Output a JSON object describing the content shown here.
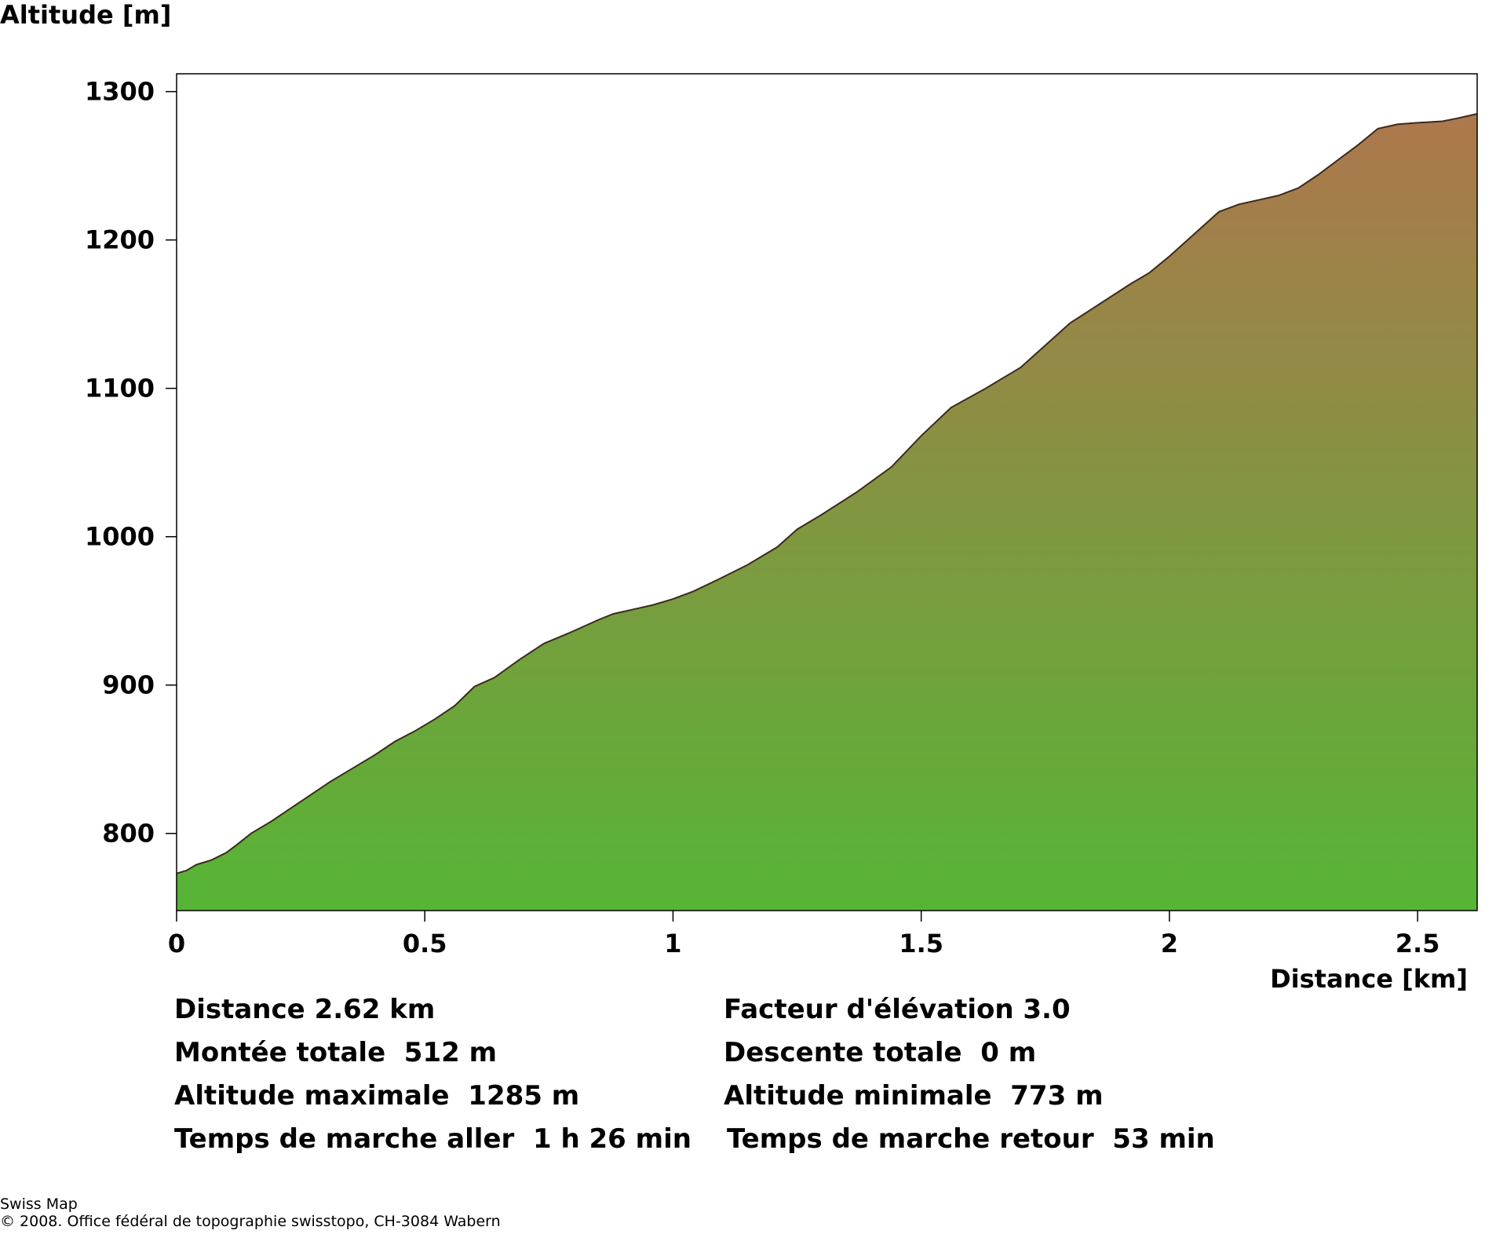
{
  "chart_data": {
    "type": "area",
    "ylabel": "Altitude [m]",
    "xlabel": "Distance [km]",
    "xlim": [
      0,
      2.62
    ],
    "ylim": [
      748,
      1312
    ],
    "x_ticks": [
      0,
      0.5,
      1,
      1.5,
      2,
      2.5
    ],
    "x_tick_labels": [
      "0",
      "0.5",
      "1",
      "1.5",
      "2",
      "2.5"
    ],
    "y_ticks": [
      800,
      900,
      1000,
      1100,
      1200,
      1300
    ],
    "y_tick_labels": [
      "800",
      "900",
      "1000",
      "1100",
      "1200",
      "1300"
    ],
    "grid": false,
    "fill_gradient": {
      "bottom": "#56b535",
      "top": "#ad774d"
    },
    "outline_color": "#3b2a1a",
    "series": [
      {
        "x": [
          0,
          0.02,
          0.04,
          0.07,
          0.1,
          0.12,
          0.15,
          0.19,
          0.23,
          0.27,
          0.31,
          0.36,
          0.4,
          0.44,
          0.48,
          0.52,
          0.56,
          0.6,
          0.64,
          0.69,
          0.74,
          0.79,
          0.85,
          0.88,
          0.92,
          0.96,
          1.0,
          1.04,
          1.09,
          1.15,
          1.21,
          1.25,
          1.3,
          1.37,
          1.44,
          1.5,
          1.56,
          1.63,
          1.7,
          1.76,
          1.8,
          1.86,
          1.92,
          1.96,
          2.0,
          2.05,
          2.1,
          2.14,
          2.18,
          2.22,
          2.26,
          2.3,
          2.34,
          2.38,
          2.42,
          2.46,
          2.5,
          2.55,
          2.58,
          2.62
        ],
        "y": [
          773,
          775,
          779,
          782,
          787,
          792,
          800,
          808,
          817,
          826,
          835,
          845,
          853,
          862,
          869,
          877,
          886,
          899,
          905,
          917,
          928,
          935,
          944,
          948,
          951,
          954,
          958,
          963,
          971,
          981,
          993,
          1005,
          1015,
          1030,
          1047,
          1068,
          1087,
          1100,
          1114,
          1132,
          1144,
          1157,
          1170,
          1178,
          1189,
          1204,
          1219,
          1224,
          1227,
          1230,
          1235,
          1244,
          1254,
          1264,
          1275,
          1278,
          1279,
          1280,
          1282,
          1285
        ]
      }
    ]
  },
  "stats": {
    "distance": "Distance 2.62 km",
    "elevation_factor": "Facteur d'élévation 3.0",
    "total_ascent": "Montée totale  512 m",
    "total_descent": "Descente totale  0 m",
    "max_altitude": "Altitude maximale  1285 m",
    "min_altitude": "Altitude minimale  773 m",
    "time_outbound": "Temps de marche aller  1 h 26 min",
    "time_return": "Temps de marche retour  53 min"
  },
  "credits": {
    "source": "Swiss Map",
    "copyright": "© 2008. Office fédéral de topographie swisstopo, CH-3084 Wabern"
  }
}
